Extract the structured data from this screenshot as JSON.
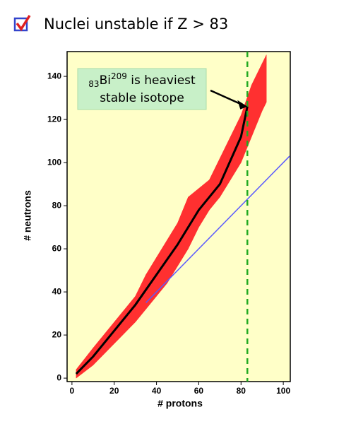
{
  "chart_data": {
    "type": "band",
    "title": "Nuclei unstable if Z > 83",
    "xlabel": "# protons",
    "ylabel": "# neutrons",
    "xlim": [
      -2.3,
      103.3
    ],
    "ylim": [
      -1.6,
      151.5
    ],
    "xticks": [
      0,
      20,
      40,
      60,
      80,
      100
    ],
    "yticks": [
      0,
      20,
      40,
      60,
      80,
      100,
      120,
      140
    ],
    "background": "#ffffc8",
    "series": [
      {
        "kind": "band",
        "color": "#ff3030",
        "x": [
          2,
          10,
          20,
          30,
          35,
          40,
          45,
          50,
          55,
          60,
          65,
          70,
          75,
          80,
          85,
          90,
          92
        ],
        "low": [
          0,
          6,
          16,
          26,
          32,
          38,
          44,
          52,
          60,
          70,
          78,
          84,
          92,
          100,
          112,
          124,
          128
        ],
        "high": [
          4,
          14,
          26,
          38,
          48,
          56,
          64,
          72,
          84,
          88,
          92,
          102,
          112,
          122,
          136,
          146,
          150
        ]
      },
      {
        "kind": "line",
        "color": "#000000",
        "width": 3,
        "x": [
          2,
          10,
          20,
          30,
          40,
          50,
          60,
          70,
          80,
          83
        ],
        "values": [
          2,
          10,
          22,
          34,
          48,
          62,
          78,
          90,
          112,
          126
        ]
      },
      {
        "kind": "line",
        "color": "#5a5aff",
        "width": 1.5,
        "x": [
          35,
          103
        ],
        "values": [
          35,
          103
        ]
      }
    ],
    "vline": {
      "x": 83,
      "color": "#22aa22"
    },
    "annotation": {
      "sub": "83",
      "element": "Bi",
      "sup": "209",
      "rest": " is heaviest",
      "line2": "stable isotope",
      "x": 83,
      "y": 126
    }
  }
}
